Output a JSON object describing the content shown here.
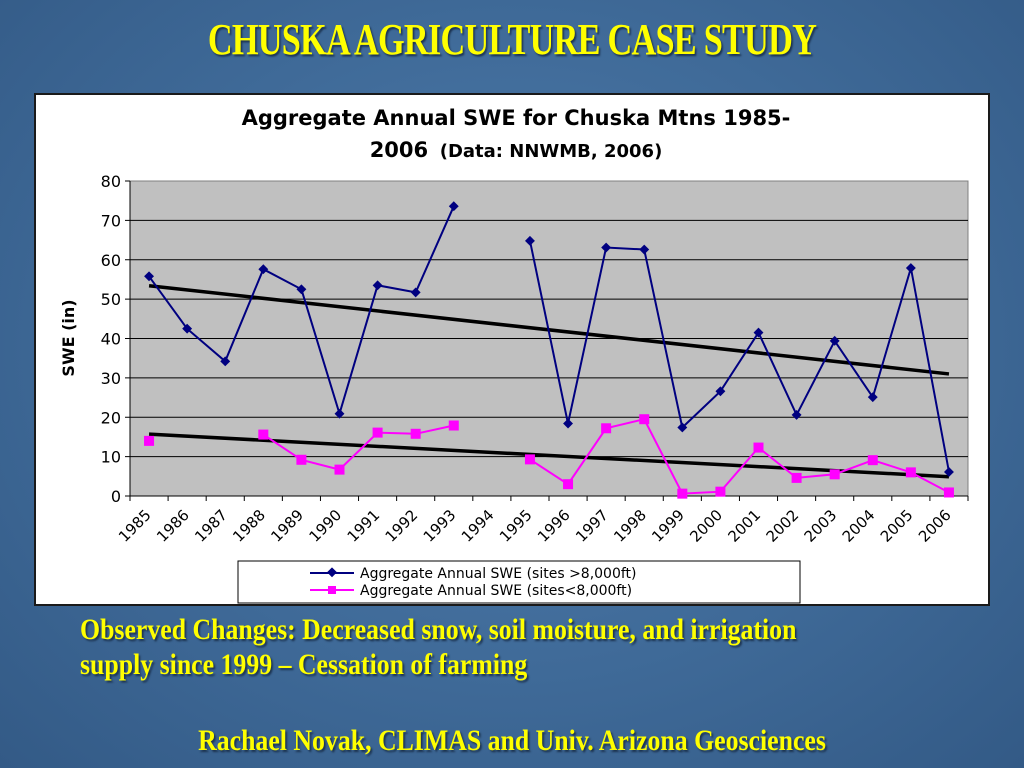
{
  "slide": {
    "title": "CHUSKA AGRICULTURE CASE STUDY",
    "caption_line1": "Observed Changes: Decreased snow, soil moisture, and irrigation",
    "caption_line2": "supply since 1999 – Cessation of farming",
    "credit": "Rachael Novak, CLIMAS and Univ. Arizona Geosciences"
  },
  "chart_data": {
    "type": "line",
    "title_line1": "Aggregate Annual SWE for Chuska Mtns 1985-",
    "title_line2_main": "2006",
    "title_line2_sub": "(Data: NNWMB, 2006)",
    "xlabel": "",
    "ylabel": "SWE (in)",
    "ylim": [
      0,
      80
    ],
    "yticks": [
      0,
      10,
      20,
      30,
      40,
      50,
      60,
      70,
      80
    ],
    "grid": true,
    "plot_background": "#c0c0c0",
    "legend_position": "bottom",
    "categories": [
      "1985",
      "1986",
      "1987",
      "1988",
      "1989",
      "1990",
      "1991",
      "1992",
      "1993",
      "1994",
      "1995",
      "1996",
      "1997",
      "1998",
      "1999",
      "2000",
      "2001",
      "2002",
      "2003",
      "2004",
      "2005",
      "2006"
    ],
    "series": [
      {
        "name": "Aggregate Annual SWE (sites >8,000ft)",
        "color": "#000080",
        "marker": "diamond",
        "values": [
          55.8,
          42.5,
          34.2,
          57.6,
          52.5,
          20.9,
          53.5,
          51.7,
          73.6,
          null,
          64.8,
          18.4,
          63.1,
          62.6,
          17.4,
          26.6,
          41.5,
          20.6,
          39.4,
          25.1,
          57.9,
          6.1
        ]
      },
      {
        "name": "Aggregate Annual SWE (sites<8,000ft)",
        "color": "#ff00ff",
        "marker": "square",
        "values": [
          14.0,
          null,
          null,
          15.6,
          9.2,
          6.7,
          16.1,
          15.8,
          17.9,
          null,
          9.3,
          3.0,
          17.2,
          19.5,
          0.6,
          1.1,
          12.3,
          4.6,
          5.5,
          9.1,
          6.0,
          0.9
        ]
      }
    ],
    "trendlines": [
      {
        "series": 0,
        "color": "#000000",
        "start": 53.4,
        "end": 31.0
      },
      {
        "series": 1,
        "color": "#000000",
        "start": 15.7,
        "end": 4.9
      }
    ]
  }
}
